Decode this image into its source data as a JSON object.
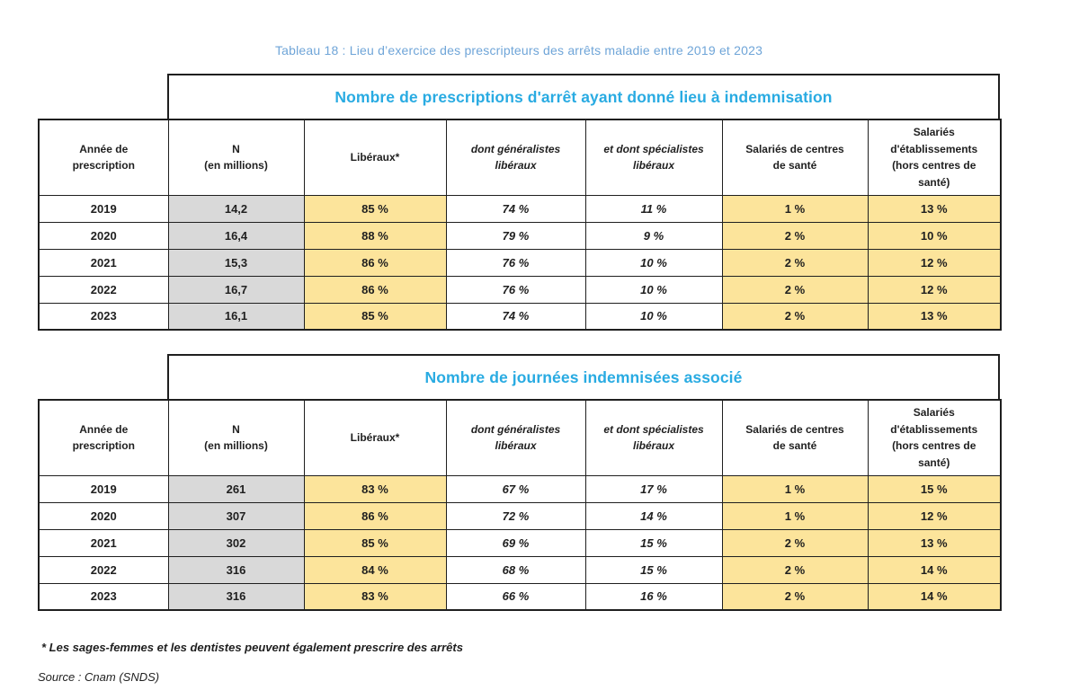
{
  "page": {
    "caption": "Tableau 18 : Lieu d’exercice des prescripteurs des arrêts maladie entre 2019 et 2023",
    "footnote": "* Les sages-femmes et les dentistes peuvent également prescrire des arrêts",
    "source": "Source : Cnam (SNDS)"
  },
  "colors": {
    "caption_blue": "#6fa5d8",
    "banner_blue": "#29abe2",
    "cell_yellow": "#fce49b",
    "cell_gray": "#d9d9d9",
    "border_black": "#1f1f1f"
  },
  "columns": [
    "Année de\nprescription",
    "N\n(en millions)",
    "Libéraux*",
    "dont généralistes\nlibéraux",
    "et dont spécialistes\nlibéraux",
    "Salariés de centres\nde santé",
    "Salariés\nd'établissements\n(hors centres de\nsanté)"
  ],
  "tables": [
    {
      "title": "Nombre de prescriptions d'arrêt ayant donné lieu à indemnisation",
      "rows": [
        [
          "2019",
          "14,2",
          "85 %",
          "74 %",
          "11 %",
          "1 %",
          "13 %"
        ],
        [
          "2020",
          "16,4",
          "88 %",
          "79 %",
          "9 %",
          "2 %",
          "10 %"
        ],
        [
          "2021",
          "15,3",
          "86 %",
          "76 %",
          "10 %",
          "2 %",
          "12 %"
        ],
        [
          "2022",
          "16,7",
          "86 %",
          "76 %",
          "10 %",
          "2 %",
          "12 %"
        ],
        [
          "2023",
          "16,1",
          "85 %",
          "74 %",
          "10 %",
          "2 %",
          "13 %"
        ]
      ]
    },
    {
      "title": "Nombre de journées indemnisées associé",
      "rows": [
        [
          "2019",
          "261",
          "83 %",
          "67 %",
          "17 %",
          "1 %",
          "15 %"
        ],
        [
          "2020",
          "307",
          "86 %",
          "72 %",
          "14 %",
          "1 %",
          "12 %"
        ],
        [
          "2021",
          "302",
          "85 %",
          "69 %",
          "15 %",
          "2 %",
          "13 %"
        ],
        [
          "2022",
          "316",
          "84 %",
          "68 %",
          "15 %",
          "2 %",
          "14 %"
        ],
        [
          "2023",
          "316",
          "83 %",
          "66 %",
          "16 %",
          "2 %",
          "14 %"
        ]
      ]
    }
  ]
}
